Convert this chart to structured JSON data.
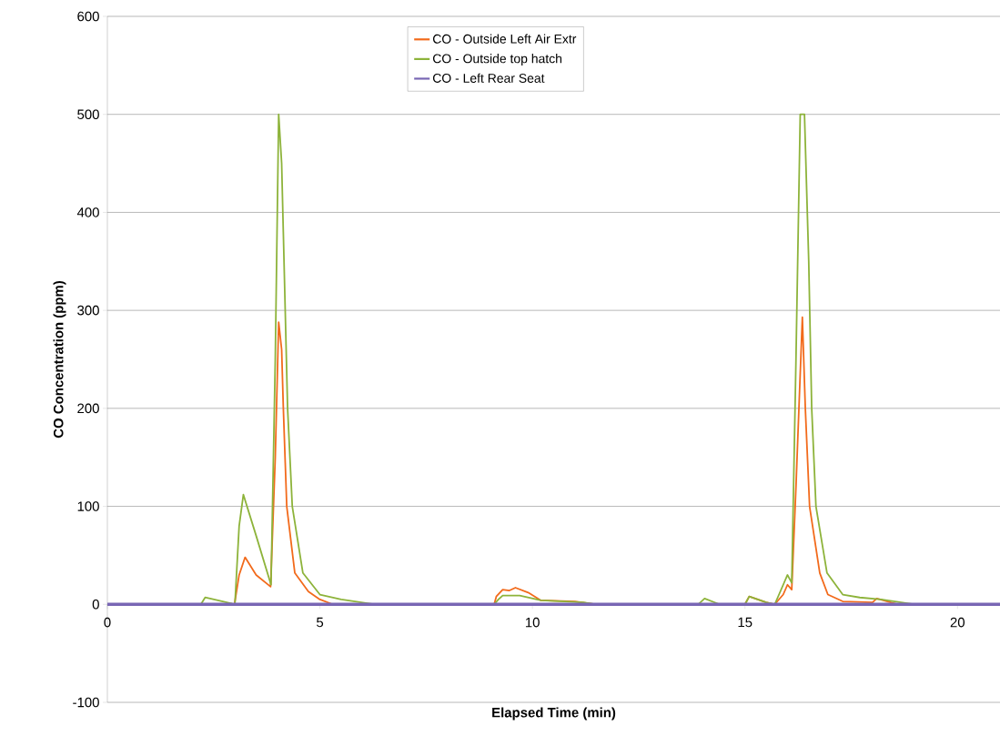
{
  "chart_data": {
    "type": "line",
    "xlabel": "Elapsed Time (min)",
    "ylabel": "CO Concentration (ppm)",
    "xlim": [
      0,
      21
    ],
    "ylim": [
      -100,
      600
    ],
    "xticks": [
      0,
      5,
      10,
      15,
      20
    ],
    "yticks": [
      -100,
      0,
      100,
      200,
      300,
      400,
      500,
      600
    ],
    "grid": "y",
    "legend": "top",
    "line_style": "solid",
    "marker": "none",
    "series": [
      {
        "name": "CO - Outside Left Air Extr",
        "color": "#f26a1b",
        "x": [
          0,
          2.99,
          3.1,
          3.24,
          3.5,
          3.84,
          3.95,
          4.03,
          4.1,
          4.14,
          4.22,
          4.41,
          4.73,
          5.0,
          5.3,
          9.1,
          9.15,
          9.3,
          9.45,
          9.6,
          9.9,
          10.2,
          11,
          11.5,
          15.0,
          15.1,
          15.5,
          15.7,
          15.9,
          16.0,
          16.1,
          16.2,
          16.35,
          16.42,
          16.52,
          16.76,
          16.95,
          17.3,
          18.0,
          18.1,
          18.6,
          21
        ],
        "values": [
          0,
          0,
          30,
          48,
          30,
          18,
          150,
          288,
          260,
          200,
          100,
          32,
          13,
          5,
          0,
          0,
          8,
          15,
          14,
          17,
          12,
          4,
          3,
          0,
          0,
          8,
          2,
          0,
          10,
          20,
          15,
          120,
          293,
          200,
          100,
          32,
          10,
          3,
          2,
          6,
          0,
          0
        ]
      },
      {
        "name": "CO - Outside top hatch",
        "color": "#8db33a",
        "x": [
          0,
          2.2,
          2.3,
          2.9,
          3.0,
          3.1,
          3.2,
          3.5,
          3.85,
          3.95,
          4.03,
          4.1,
          4.24,
          4.35,
          4.6,
          5.0,
          5.5,
          6.3,
          9.1,
          9.2,
          9.3,
          9.7,
          10.2,
          11.2,
          11.5,
          13.9,
          14.05,
          14.4,
          15.0,
          15.1,
          15.5,
          15.7,
          15.9,
          16.0,
          16.1,
          16.2,
          16.3,
          16.4,
          16.5,
          16.57,
          16.67,
          16.93,
          17.3,
          17.7,
          18.2,
          19.0,
          21
        ],
        "values": [
          0,
          0,
          7,
          1,
          0,
          80,
          112,
          70,
          20,
          250,
          500,
          450,
          200,
          100,
          32,
          10,
          5,
          0,
          0,
          5,
          9,
          9,
          4,
          2,
          0,
          0,
          6,
          0,
          0,
          8,
          2,
          0,
          20,
          30,
          22,
          250,
          500,
          500,
          350,
          200,
          100,
          32,
          10,
          7,
          5,
          0,
          0
        ]
      },
      {
        "name": "CO - Left Rear Seat",
        "color": "#7866b4",
        "x": [
          0,
          21
        ],
        "values": [
          0,
          0
        ]
      }
    ]
  }
}
